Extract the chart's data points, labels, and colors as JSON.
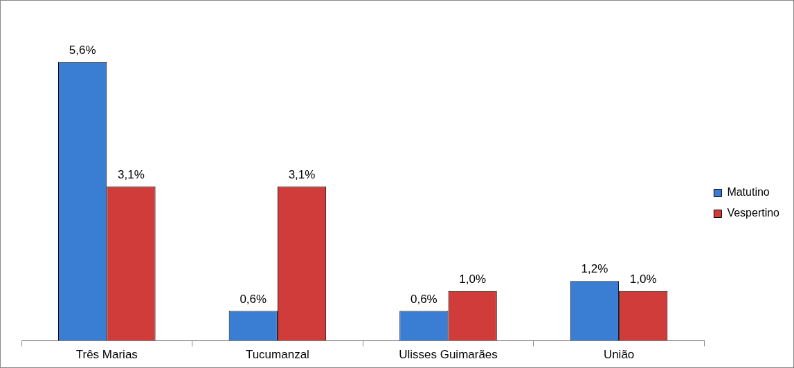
{
  "chart_data": {
    "type": "bar",
    "categories": [
      "Três Marias",
      "Tucumanzal",
      "Ulisses Guimarães",
      "União"
    ],
    "series": [
      {
        "name": "Matutino",
        "color": "#3a7ed4",
        "values": [
          5.6,
          0.6,
          0.6,
          1.2
        ],
        "value_labels": [
          "5,6%",
          "0,6%",
          "0,6%",
          "1,2%"
        ]
      },
      {
        "name": "Vespertino",
        "color": "#d03c3a",
        "values": [
          3.1,
          3.1,
          1.0,
          1.0
        ],
        "value_labels": [
          "3,1%",
          "3,1%",
          "1,0%",
          "1,0%"
        ]
      }
    ],
    "legend": "right",
    "grid": false
  }
}
